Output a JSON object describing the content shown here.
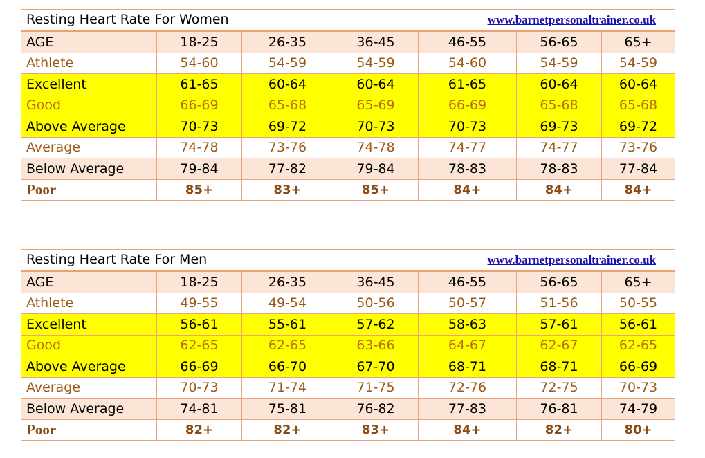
{
  "tables": [
    {
      "title": "Resting Heart Rate For Women",
      "link": "www.barnetpersonaltrainer.co.uk",
      "header": [
        "AGE",
        "18-25",
        "26-35",
        "36-45",
        "46-55",
        "56-65",
        "65+"
      ],
      "rows": [
        [
          "Athlete",
          "54-60",
          "54-59",
          "54-59",
          "54-60",
          "54-59",
          "54-59"
        ],
        [
          "Excellent",
          "61-65",
          "60-64",
          "60-64",
          "61-65",
          "60-64",
          "60-64"
        ],
        [
          "Good",
          "66-69",
          "65-68",
          "65-69",
          "66-69",
          "65-68",
          "65-68"
        ],
        [
          "Above Average",
          "70-73",
          "69-72",
          "70-73",
          "70-73",
          "69-73",
          "69-72"
        ],
        [
          "Average",
          "74-78",
          "73-76",
          "74-78",
          "74-77",
          "74-77",
          "73-76"
        ],
        [
          "Below Average",
          "79-84",
          "77-82",
          "79-84",
          "78-83",
          "78-83",
          "77-84"
        ],
        [
          "Poor",
          "85+",
          "83+",
          "85+",
          "84+",
          "84+",
          "84+"
        ]
      ]
    },
    {
      "title": "Resting Heart Rate For Men",
      "link": "www.barnetpersonaltrainer.co.uk",
      "header": [
        "AGE",
        "18-25",
        "26-35",
        "36-45",
        "46-55",
        "56-65",
        "65+"
      ],
      "rows": [
        [
          "Athlete",
          "49-55",
          "49-54",
          "50-56",
          "50-57",
          "51-56",
          "50-55"
        ],
        [
          "Excellent",
          "56-61",
          "55-61",
          "57-62",
          "58-63",
          "57-61",
          "56-61"
        ],
        [
          "Good",
          "62-65",
          "62-65",
          "63-66",
          "64-67",
          "62-67",
          "62-65"
        ],
        [
          "Above Average",
          "66-69",
          "66-70",
          "67-70",
          "68-71",
          "68-71",
          "66-69"
        ],
        [
          "Average",
          "70-73",
          "71-74",
          "71-75",
          "72-76",
          "72-75",
          "70-73"
        ],
        [
          "Below Average",
          "74-81",
          "75-81",
          "76-82",
          "77-83",
          "76-81",
          "74-79"
        ],
        [
          "Poor",
          "82+",
          "82+",
          "83+",
          "84+",
          "82+",
          "80+"
        ]
      ]
    }
  ],
  "colors": {
    "header_row_bg": "#fce4d6",
    "highlight_bg": "#ffff00",
    "border": "#e8a47c",
    "brown_text": "#9c5a18",
    "link": "#1a0fb0"
  }
}
